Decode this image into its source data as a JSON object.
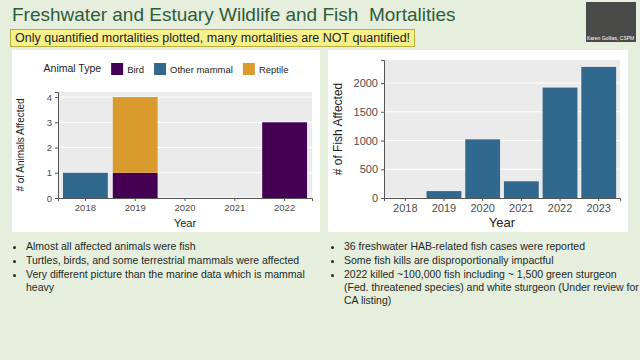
{
  "slide": {
    "title": "Freshwater and Estuary Wildlife and Fish  Mortalities",
    "subtitle": "Only quantified mortalities plotted, many mortalities are NOT quantified!",
    "presenter": "Karen Gollias, CSPM",
    "bullets_left": [
      "Almost all affected animals were fish",
      "Turtles, birds, and some terrestrial mammals were affected",
      "Very different picture than the marine data which is mammal heavy"
    ],
    "bullets_right": [
      "36 freshwater HAB-related fish cases were reported",
      "Some fish kills are disproportionally impactful",
      "2022 killed ~100,000 fish including ~ 1,500 green sturgeon (Fed. threatened species) and white sturgeon (Under review for CA listing)"
    ]
  },
  "chart_data": [
    {
      "type": "bar",
      "stacked": true,
      "legend": "top",
      "legend_title": "Animal Type",
      "grid": true,
      "x_label": "Year",
      "y_label": "# of Animals Affected",
      "categories": [
        "2018",
        "2019",
        "2020",
        "2021",
        "2022"
      ],
      "series": [
        {
          "name": "Bird",
          "color": "#440154",
          "values": [
            0,
            1,
            0,
            0,
            3
          ]
        },
        {
          "name": "Other mammal",
          "color": "#31688e",
          "values": [
            1,
            0,
            0,
            0,
            0
          ]
        },
        {
          "name": "Reptile",
          "color": "#d99a2e",
          "values": [
            0,
            3,
            0,
            0,
            0
          ]
        }
      ],
      "ylim": [
        0,
        4.2
      ],
      "yticks": [
        0,
        1,
        2,
        3,
        4
      ]
    },
    {
      "type": "bar",
      "grid": true,
      "color": "#31688e",
      "x_label": "Year",
      "y_label": "# of Fish Affected",
      "categories": [
        "2018",
        "2019",
        "2020",
        "2021",
        "2022",
        "2023"
      ],
      "values": [
        0,
        120,
        1020,
        290,
        1920,
        2280
      ],
      "ylim": [
        0,
        2400
      ],
      "yticks": [
        0,
        500,
        1000,
        1500,
        2000
      ]
    }
  ]
}
